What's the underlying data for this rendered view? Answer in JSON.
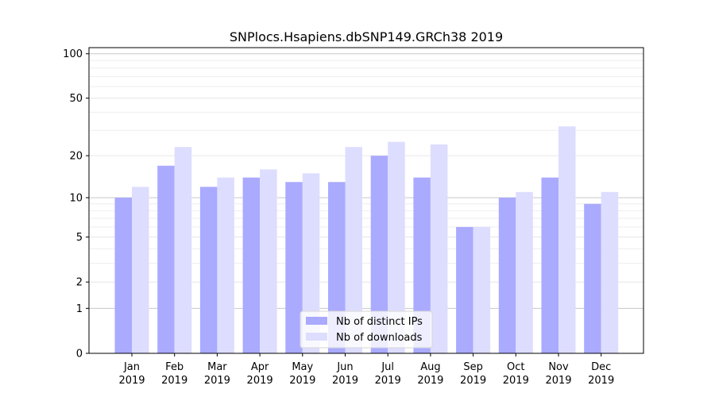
{
  "chart_data": {
    "type": "bar",
    "title": "SNPlocs.Hsapiens.dbSNP149.GRCh38 2019",
    "xlabel": "",
    "ylabel": "",
    "yscale": "log1p",
    "ylim": [
      0,
      110
    ],
    "yticks": [
      0,
      1,
      2,
      5,
      10,
      20,
      50,
      100
    ],
    "grid": true,
    "legend_position": "bottom-center",
    "categories": [
      [
        "Jan",
        "2019"
      ],
      [
        "Feb",
        "2019"
      ],
      [
        "Mar",
        "2019"
      ],
      [
        "Apr",
        "2019"
      ],
      [
        "May",
        "2019"
      ],
      [
        "Jun",
        "2019"
      ],
      [
        "Jul",
        "2019"
      ],
      [
        "Aug",
        "2019"
      ],
      [
        "Sep",
        "2019"
      ],
      [
        "Oct",
        "2019"
      ],
      [
        "Nov",
        "2019"
      ],
      [
        "Dec",
        "2019"
      ]
    ],
    "series": [
      {
        "name": "Nb of distinct IPs",
        "color": "#aaaaff",
        "values": [
          10,
          17,
          12,
          14,
          13,
          13,
          20,
          14,
          6,
          10,
          14,
          9
        ]
      },
      {
        "name": "Nb of downloads",
        "color": "#ddddff",
        "values": [
          12,
          23,
          14,
          16,
          15,
          23,
          25,
          24,
          6,
          11,
          32,
          11
        ]
      }
    ]
  }
}
